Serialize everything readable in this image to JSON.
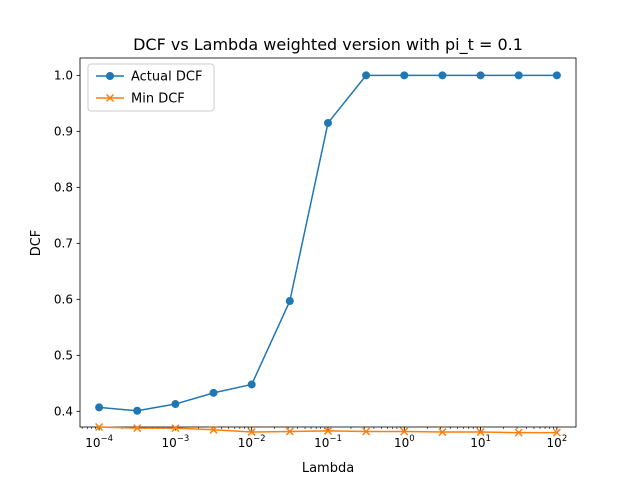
{
  "chart_data": {
    "type": "line",
    "title": "DCF vs Lambda weighted version with pi_t = 0.1",
    "xlabel": "Lambda",
    "ylabel": "DCF",
    "xscale": "log",
    "xlim": [
      5.62e-05,
      178
    ],
    "ylim": [
      0.372,
      1.031
    ],
    "x": [
      0.0001,
      0.000316,
      0.001,
      0.00316,
      0.01,
      0.0316,
      0.1,
      0.316,
      1,
      3.16,
      10,
      31.6,
      100
    ],
    "x_ticks": [
      {
        "value": 0.0001,
        "base": "10",
        "exp": "−4"
      },
      {
        "value": 0.001,
        "base": "10",
        "exp": "−3"
      },
      {
        "value": 0.01,
        "base": "10",
        "exp": "−2"
      },
      {
        "value": 0.1,
        "base": "10",
        "exp": "−1"
      },
      {
        "value": 1,
        "base": "10",
        "exp": "0"
      },
      {
        "value": 10,
        "base": "10",
        "exp": "1"
      },
      {
        "value": 100,
        "base": "10",
        "exp": "2"
      }
    ],
    "y_ticks": [
      "0.4",
      "0.5",
      "0.6",
      "0.7",
      "0.8",
      "0.9",
      "1.0"
    ],
    "grid": false,
    "legend_position": "top-left",
    "series": [
      {
        "name": "Actual DCF",
        "color": "#1f77b4",
        "marker": "circle",
        "values": [
          0.407,
          0.401,
          0.413,
          0.433,
          0.448,
          0.597,
          0.915,
          1.0,
          1.0,
          1.0,
          1.0,
          1.0,
          1.0
        ]
      },
      {
        "name": "Min DCF",
        "color": "#ff7f0e",
        "marker": "x",
        "values": [
          0.372,
          0.37,
          0.37,
          0.367,
          0.363,
          0.364,
          0.365,
          0.364,
          0.364,
          0.363,
          0.363,
          0.362,
          0.362
        ]
      }
    ]
  }
}
